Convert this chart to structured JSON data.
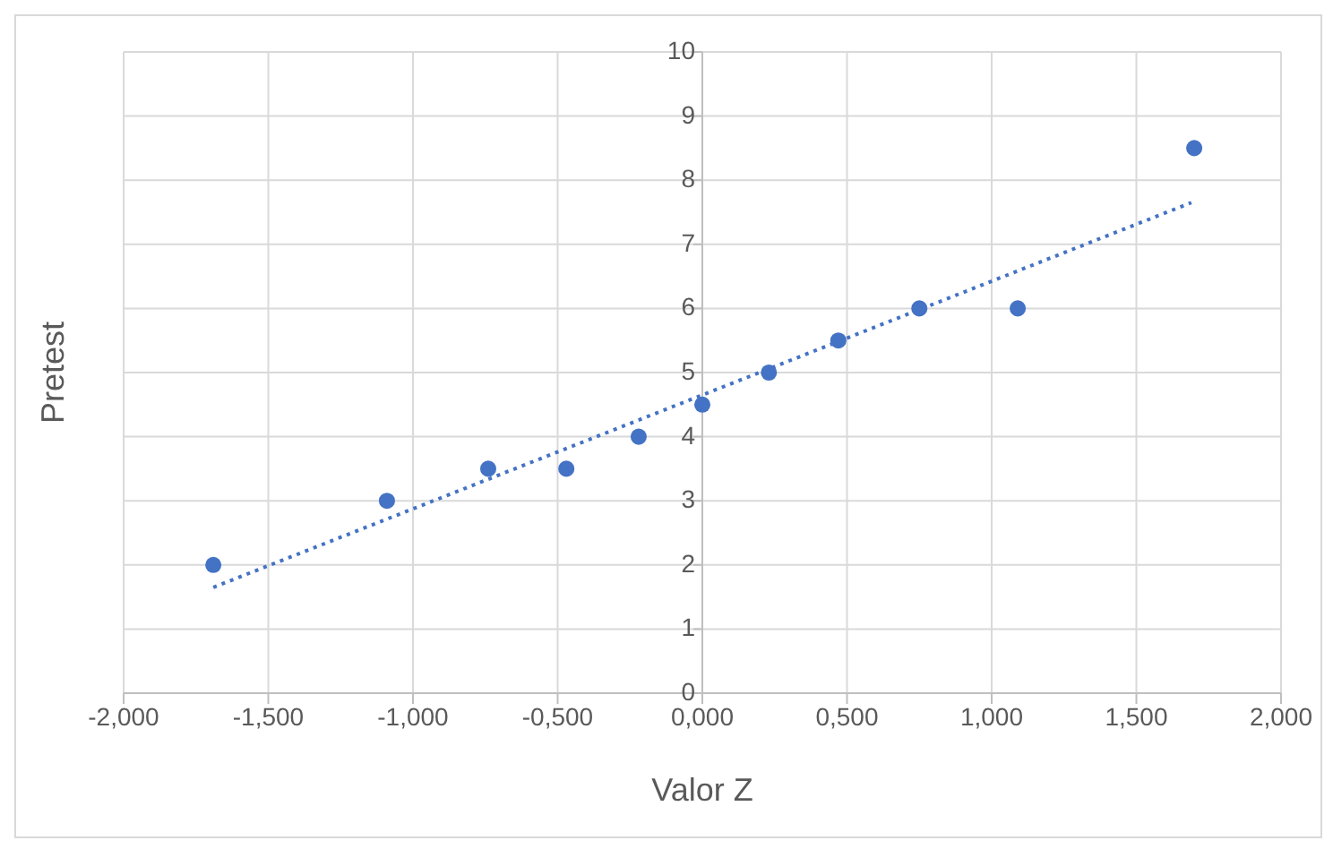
{
  "chart_data": {
    "type": "scatter",
    "xlabel": "Valor Z",
    "ylabel": "Pretest",
    "xlim": [
      -2,
      2
    ],
    "xticks": [
      {
        "value": -2,
        "label": "-2,000"
      },
      {
        "value": -1.5,
        "label": "-1,500"
      },
      {
        "value": -1,
        "label": "-1,000"
      },
      {
        "value": -0.5,
        "label": "-0,500"
      },
      {
        "value": 0,
        "label": "0,000"
      },
      {
        "value": 0.5,
        "label": "0,500"
      },
      {
        "value": 1,
        "label": "1,000"
      },
      {
        "value": 1.5,
        "label": "1,500"
      },
      {
        "value": 2,
        "label": "2,000"
      }
    ],
    "ylim": [
      0,
      10
    ],
    "yticks": [
      0,
      1,
      2,
      3,
      4,
      5,
      6,
      7,
      8,
      9,
      10
    ],
    "grid": true,
    "series": [
      {
        "marker": "circle",
        "color": "#4472c4",
        "x": [
          -1.69,
          -1.09,
          -0.74,
          -0.47,
          -0.22,
          0,
          0.23,
          0.47,
          0.75,
          1.09,
          1.7
        ],
        "values": [
          2,
          3,
          3.5,
          3.5,
          4,
          4.5,
          5,
          5.5,
          6,
          6,
          8.5
        ]
      },
      {
        "type": "line",
        "marker": "none",
        "color": "#4472c4",
        "line_style": "dotted",
        "x": [
          -1.69,
          1.69
        ],
        "values": [
          1.65,
          7.65
        ]
      }
    ]
  }
}
